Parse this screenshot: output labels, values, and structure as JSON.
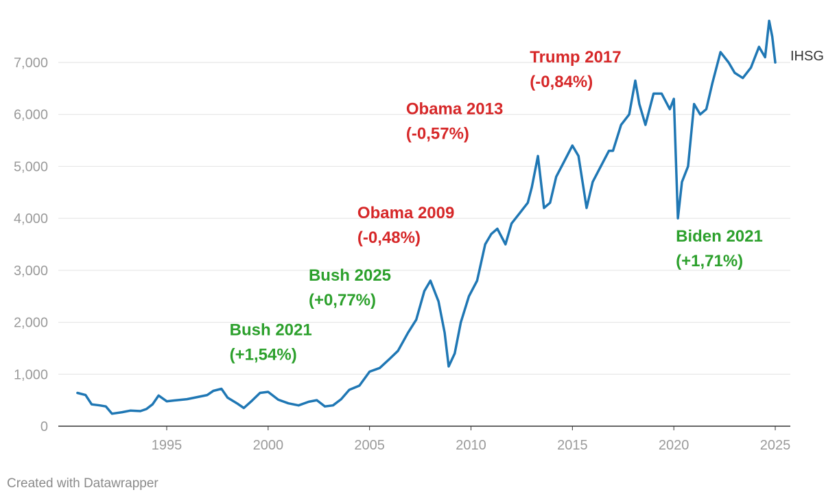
{
  "chart_data": {
    "type": "line",
    "xlabel": "",
    "ylabel": "",
    "xlim": [
      1990.1,
      2025.0
    ],
    "ylim": [
      0,
      7900
    ],
    "x_ticks": [
      {
        "value": 1995,
        "label": "1995"
      },
      {
        "value": 2000,
        "label": "2000"
      },
      {
        "value": 2005,
        "label": "2005"
      },
      {
        "value": 2010,
        "label": "2010"
      },
      {
        "value": 2015,
        "label": "2015"
      },
      {
        "value": 2020,
        "label": "2020"
      },
      {
        "value": 2025,
        "label": "2025"
      }
    ],
    "y_ticks": [
      {
        "value": 0,
        "label": "0"
      },
      {
        "value": 1000,
        "label": "1,000"
      },
      {
        "value": 2000,
        "label": "2,000"
      },
      {
        "value": 3000,
        "label": "3,000"
      },
      {
        "value": 4000,
        "label": "4,000"
      },
      {
        "value": 5000,
        "label": "5,000"
      },
      {
        "value": 6000,
        "label": "6,000"
      },
      {
        "value": 7000,
        "label": "7,000"
      }
    ],
    "grid": true,
    "series": [
      {
        "name": "IHSG",
        "color": "#1f77b4",
        "points": [
          [
            1990.6,
            640
          ],
          [
            1991.0,
            600
          ],
          [
            1991.3,
            420
          ],
          [
            1991.7,
            400
          ],
          [
            1992.0,
            380
          ],
          [
            1992.3,
            240
          ],
          [
            1992.8,
            270
          ],
          [
            1993.2,
            300
          ],
          [
            1993.7,
            290
          ],
          [
            1994.0,
            330
          ],
          [
            1994.3,
            420
          ],
          [
            1994.6,
            590
          ],
          [
            1995.0,
            480
          ],
          [
            1995.5,
            500
          ],
          [
            1996.0,
            520
          ],
          [
            1996.5,
            560
          ],
          [
            1997.0,
            600
          ],
          [
            1997.3,
            680
          ],
          [
            1997.7,
            720
          ],
          [
            1998.0,
            550
          ],
          [
            1998.5,
            430
          ],
          [
            1998.8,
            350
          ],
          [
            1999.2,
            490
          ],
          [
            1999.6,
            640
          ],
          [
            2000.0,
            660
          ],
          [
            2000.5,
            510
          ],
          [
            2001.0,
            440
          ],
          [
            2001.5,
            400
          ],
          [
            2002.0,
            470
          ],
          [
            2002.4,
            500
          ],
          [
            2002.8,
            380
          ],
          [
            2003.2,
            400
          ],
          [
            2003.6,
            520
          ],
          [
            2004.0,
            700
          ],
          [
            2004.5,
            780
          ],
          [
            2005.0,
            1050
          ],
          [
            2005.5,
            1120
          ],
          [
            2006.0,
            1300
          ],
          [
            2006.4,
            1450
          ],
          [
            2006.9,
            1800
          ],
          [
            2007.3,
            2050
          ],
          [
            2007.7,
            2600
          ],
          [
            2008.0,
            2800
          ],
          [
            2008.4,
            2400
          ],
          [
            2008.7,
            1800
          ],
          [
            2008.9,
            1150
          ],
          [
            2009.2,
            1400
          ],
          [
            2009.5,
            2000
          ],
          [
            2009.9,
            2500
          ],
          [
            2010.3,
            2800
          ],
          [
            2010.7,
            3500
          ],
          [
            2011.0,
            3700
          ],
          [
            2011.3,
            3800
          ],
          [
            2011.7,
            3500
          ],
          [
            2012.0,
            3900
          ],
          [
            2012.4,
            4100
          ],
          [
            2012.8,
            4300
          ],
          [
            2013.0,
            4600
          ],
          [
            2013.3,
            5200
          ],
          [
            2013.6,
            4200
          ],
          [
            2013.9,
            4300
          ],
          [
            2014.2,
            4800
          ],
          [
            2014.6,
            5100
          ],
          [
            2015.0,
            5400
          ],
          [
            2015.3,
            5200
          ],
          [
            2015.7,
            4200
          ],
          [
            2016.0,
            4700
          ],
          [
            2016.4,
            5000
          ],
          [
            2016.8,
            5300
          ],
          [
            2017.0,
            5300
          ],
          [
            2017.4,
            5800
          ],
          [
            2017.8,
            6000
          ],
          [
            2018.1,
            6650
          ],
          [
            2018.3,
            6200
          ],
          [
            2018.6,
            5800
          ],
          [
            2019.0,
            6400
          ],
          [
            2019.4,
            6400
          ],
          [
            2019.8,
            6100
          ],
          [
            2020.0,
            6300
          ],
          [
            2020.2,
            4000
          ],
          [
            2020.4,
            4700
          ],
          [
            2020.7,
            5000
          ],
          [
            2021.0,
            6200
          ],
          [
            2021.3,
            6000
          ],
          [
            2021.6,
            6100
          ],
          [
            2021.9,
            6600
          ],
          [
            2022.3,
            7200
          ],
          [
            2022.7,
            7000
          ],
          [
            2023.0,
            6800
          ],
          [
            2023.4,
            6700
          ],
          [
            2023.8,
            6900
          ],
          [
            2024.2,
            7300
          ],
          [
            2024.5,
            7100
          ],
          [
            2024.7,
            7800
          ],
          [
            2024.85,
            7500
          ],
          [
            2025.0,
            7000
          ]
        ]
      }
    ],
    "annotations": [
      {
        "title": "Bush 2021",
        "change": "(+1,54%)",
        "x": 1998.1,
        "y": 1750,
        "color": "#2ca02c"
      },
      {
        "title": "Bush 2025",
        "change": "(+0,77%)",
        "x": 2002.0,
        "y": 2800,
        "color": "#2ca02c"
      },
      {
        "title": "Obama 2009",
        "change": "(-0,48%)",
        "x": 2004.4,
        "y": 4000,
        "color": "#d62728"
      },
      {
        "title": "Obama 2013",
        "change": "(-0,57%)",
        "x": 2006.8,
        "y": 6000,
        "color": "#d62728"
      },
      {
        "title": "Trump 2017",
        "change": "(-0,84%)",
        "x": 2012.9,
        "y": 7000,
        "color": "#d62728"
      },
      {
        "title": "Biden 2021",
        "change": "(+1,71%)",
        "x": 2020.1,
        "y": 3550,
        "color": "#2ca02c"
      }
    ]
  },
  "footer": {
    "credit": "Created with Datawrapper"
  }
}
